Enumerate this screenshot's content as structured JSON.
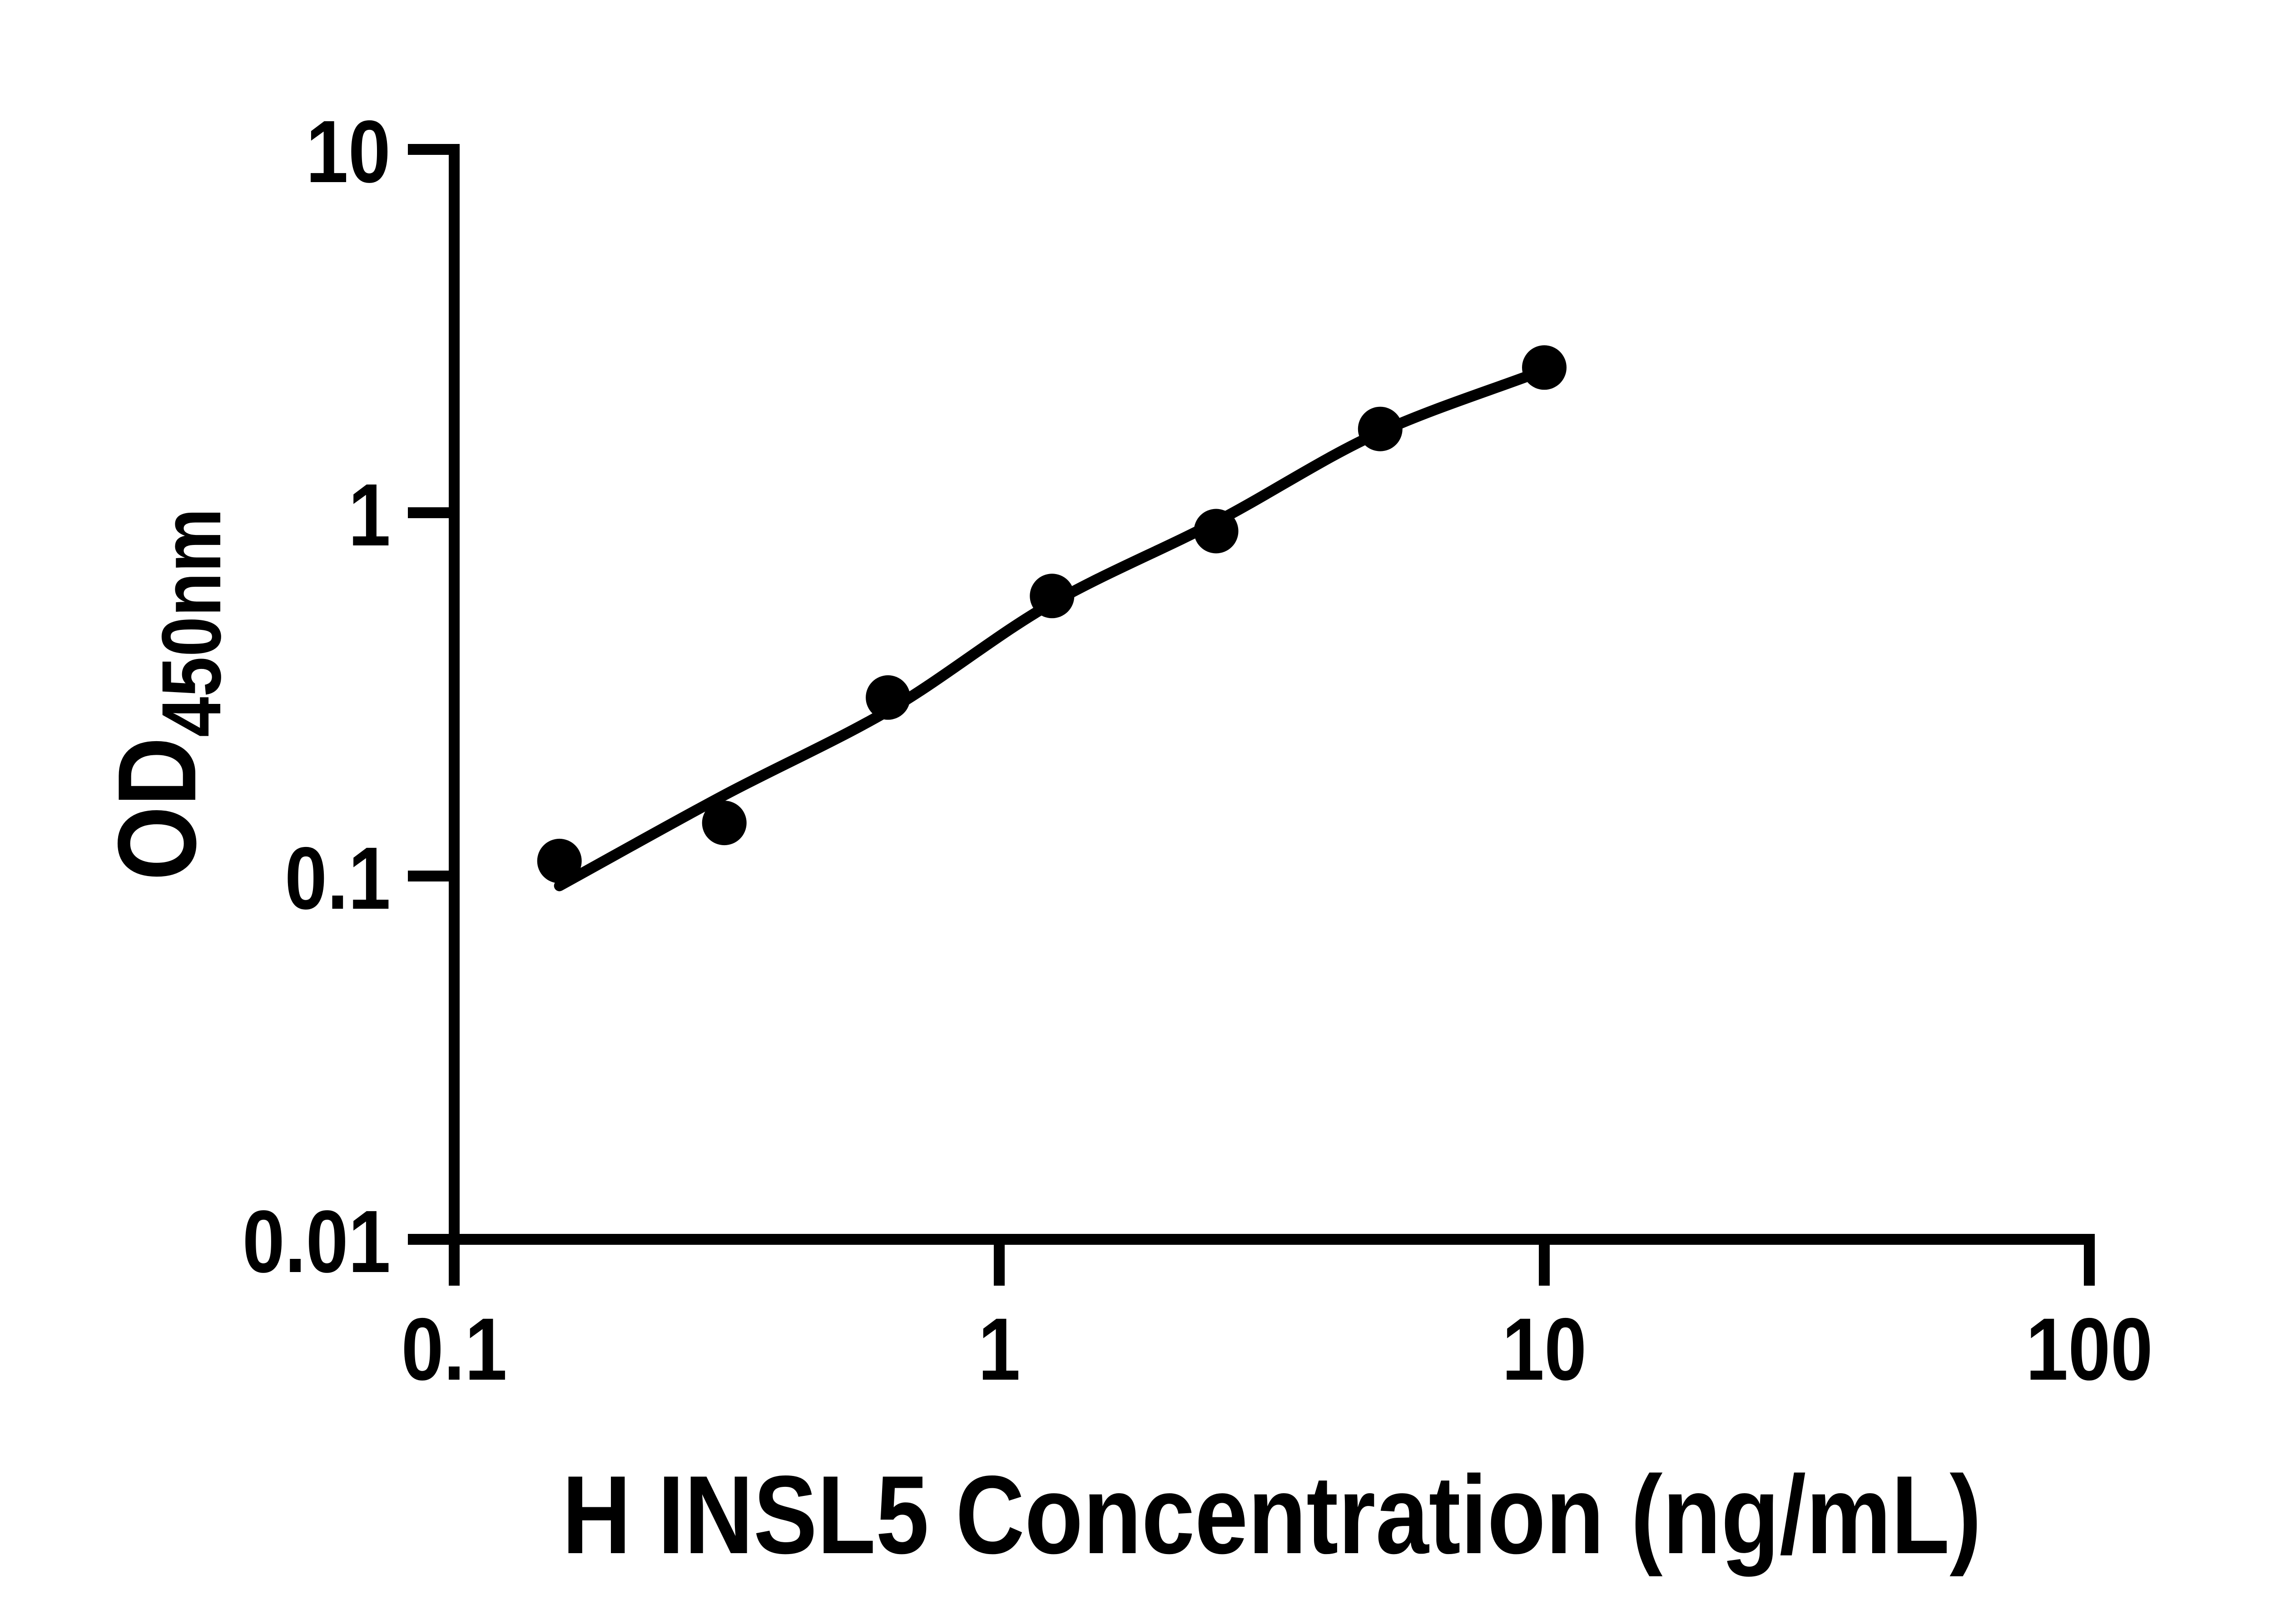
{
  "figure": {
    "background_color": "#ffffff",
    "ink_color": "#000000"
  },
  "chart_data": {
    "type": "scatter",
    "title": "",
    "xlabel": "H INSL5 Concentration (ng/mL)",
    "ylabel": "OD",
    "ylabel_subscript": "450nm",
    "x_scale": "log",
    "y_scale": "log",
    "xlim": [
      0.1,
      100
    ],
    "ylim": [
      0.01,
      10
    ],
    "grid": false,
    "legend": false,
    "x_ticks": [
      {
        "value": 0.1,
        "label": "0.1"
      },
      {
        "value": 1,
        "label": "1"
      },
      {
        "value": 10,
        "label": "10"
      },
      {
        "value": 100,
        "label": "100"
      }
    ],
    "y_ticks": [
      {
        "value": 0.01,
        "label": "0.01"
      },
      {
        "value": 0.1,
        "label": "0.1"
      },
      {
        "value": 1,
        "label": "1"
      },
      {
        "value": 10,
        "label": "10"
      }
    ],
    "series": [
      {
        "name": "standard-points",
        "marker": "filled-circle",
        "marker_color": "#000000",
        "points": [
          {
            "x": 0.156,
            "od": 0.11
          },
          {
            "x": 0.313,
            "od": 0.14
          },
          {
            "x": 0.625,
            "od": 0.31
          },
          {
            "x": 1.25,
            "od": 0.59
          },
          {
            "x": 2.5,
            "od": 0.89
          },
          {
            "x": 5,
            "od": 1.7
          },
          {
            "x": 10,
            "od": 2.51
          }
        ]
      }
    ],
    "fit_curve": {
      "name": "fitted-standard-curve",
      "color": "#000000",
      "anchors": [
        {
          "x": 0.156,
          "od": 0.094
        },
        {
          "x": 0.313,
          "od": 0.167
        },
        {
          "x": 0.625,
          "od": 0.285
        },
        {
          "x": 1.25,
          "od": 0.564
        },
        {
          "x": 2.5,
          "od": 0.944
        },
        {
          "x": 5,
          "od": 1.667
        },
        {
          "x": 10,
          "od": 2.47
        }
      ]
    }
  }
}
